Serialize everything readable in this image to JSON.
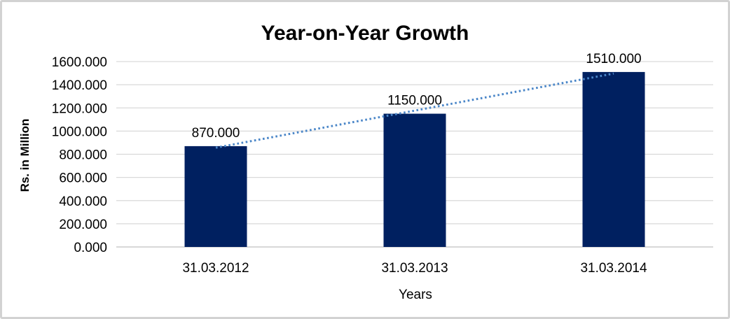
{
  "window": {
    "background": "#ffffff",
    "border_color": "#d2d2d2"
  },
  "chart_data": {
    "type": "bar",
    "title": "Year-on-Year Growth",
    "categories": [
      "31.03.2012",
      "31.03.2013",
      "31.03.2014"
    ],
    "values": [
      870,
      1150,
      1510
    ],
    "data_labels": [
      "870.000",
      "1150.000",
      "1510.000"
    ],
    "xlabel": "Years",
    "ylabel": "Rs. in Million",
    "ylim": [
      0,
      1600
    ],
    "ytick_step": 200,
    "ytick_labels": [
      "0.000",
      "200.000",
      "400.000",
      "600.000",
      "800.000",
      "1000.000",
      "1200.000",
      "1400.000",
      "1600.000"
    ],
    "grid": true,
    "legend": "none",
    "bar_color": "#002060",
    "grid_color": "#d9d9d9",
    "axis_line_color": "#c0c0c0",
    "text_color": "#000000",
    "trendline": {
      "type": "linear",
      "style": "dotted",
      "color": "#4a86c8",
      "endpoint_values": [
        856.667,
        1496.667
      ]
    }
  }
}
